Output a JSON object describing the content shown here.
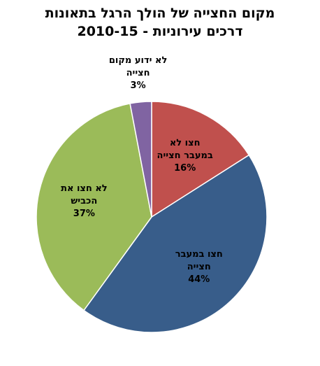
{
  "chart_data": {
    "type": "pie",
    "title": "מקום החצייה של הולך הרגל בתאונות\nדרכים עירוניות - 2010-15",
    "categories": [
      "חצו לא\nבמעבר חצייה",
      "חצו במעבר\nחצייה",
      "לא חצו את\nהכביש",
      "לא ידוע מקום\nחצייה"
    ],
    "values": [
      16,
      44,
      37,
      3
    ],
    "value_labels": [
      "16%",
      "44%",
      "37%",
      "3%"
    ],
    "colors": [
      "#c0504d",
      "#385d8a",
      "#9bbb59",
      "#8064a2"
    ]
  }
}
